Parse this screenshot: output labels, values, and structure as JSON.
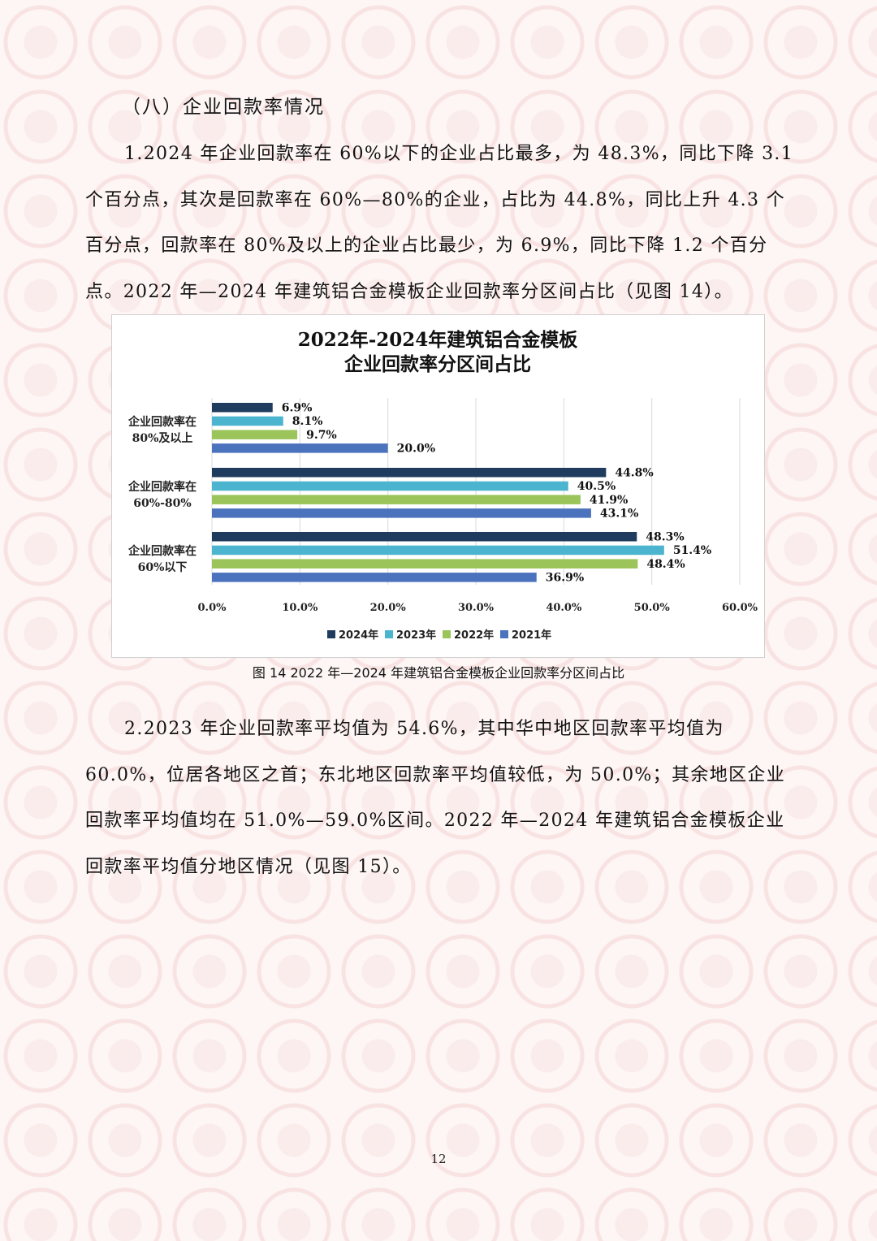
{
  "section_heading": "（八）企业回款率情况",
  "paragraph_1": "1.2024 年企业回款率在 60%以下的企业占比最多，为 48.3%，同比下降 3.1 个百分点，其次是回款率在 60%—80%的企业，占比为 44.8%，同比上升 4.3 个百分点，回款率在 80%及以上的企业占比最少，为 6.9%，同比下降 1.2 个百分点。2022 年—2024 年建筑铝合金模板企业回款率分区间占比（见图 14）。",
  "figure_caption": "图 14 2022 年—2024 年建筑铝合金模板企业回款率分区间占比",
  "paragraph_2": "2.2023 年企业回款率平均值为 54.6%，其中华中地区回款率平均值为 60.0%，位居各地区之首；东北地区回款率平均值较低，为 50.0%；其余地区企业回款率平均值均在 51.0%—59.0%区间。2022 年—2024 年建筑铝合金模板企业回款率平均值分地区情况（见图 15）。",
  "page_number": "12",
  "chart_data": {
    "type": "bar",
    "orientation": "horizontal",
    "title": [
      "2022年-2024年建筑铝合金模板",
      "企业回款率分区间占比"
    ],
    "categories": [
      [
        "企业回款率在",
        "80%及以上"
      ],
      [
        "企业回款率在",
        "60%-80%"
      ],
      [
        "企业回款率在",
        "60%以下"
      ]
    ],
    "series": [
      {
        "name": "2024年",
        "color": "#1f3c5e",
        "values": [
          6.9,
          44.8,
          48.3
        ]
      },
      {
        "name": "2023年",
        "color": "#4bb4ce",
        "values": [
          8.1,
          40.5,
          51.4
        ]
      },
      {
        "name": "2022年",
        "color": "#9bc45a",
        "values": [
          9.7,
          41.9,
          48.4
        ]
      },
      {
        "name": "2021年",
        "color": "#4b72bd",
        "values": [
          20.0,
          43.1,
          36.9
        ]
      }
    ],
    "value_labels": [
      [
        "6.9%",
        "44.8%",
        "48.3%"
      ],
      [
        "8.1%",
        "40.5%",
        "51.4%"
      ],
      [
        "9.7%",
        "41.9%",
        "48.4%"
      ],
      [
        "20.0%",
        "43.1%",
        "36.9%"
      ]
    ],
    "xticks": [
      "0.0%",
      "10.0%",
      "20.0%",
      "30.0%",
      "40.0%",
      "50.0%",
      "60.0%"
    ],
    "xlim": [
      0,
      60
    ],
    "grid": "vertical",
    "legend": "bottom"
  }
}
